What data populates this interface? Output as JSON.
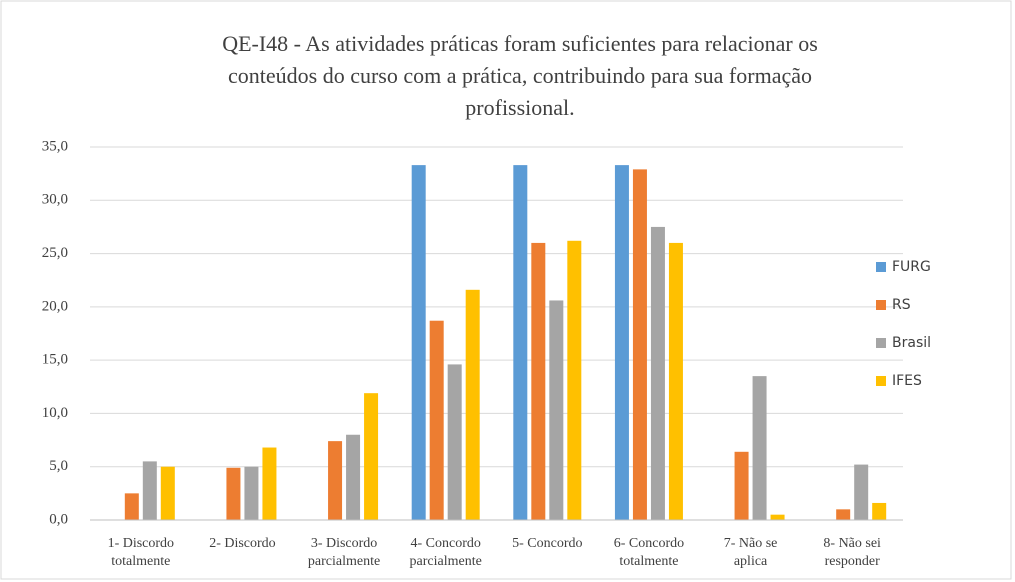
{
  "chart_data": {
    "type": "bar",
    "title": "QE-I48 - As atividades práticas foram suficientes para relacionar os\nconteúdos do curso com a prática, contribuindo para sua formação\nprofissional.",
    "categories": [
      "1- Discordo\ntotalmente",
      "2- Discordo",
      "3- Discordo\nparcialmente",
      "4- Concordo\nparcialmente",
      "5- Concordo",
      "6- Concordo\ntotalmente",
      "7- Não se\naplica",
      "8- Não sei\nresponder"
    ],
    "series": [
      {
        "name": "FURG",
        "color": "#5b9bd5",
        "values": [
          0,
          0,
          0,
          33.3,
          33.3,
          33.3,
          0,
          0
        ]
      },
      {
        "name": "RS",
        "color": "#ed7d31",
        "values": [
          2.5,
          4.9,
          7.4,
          18.7,
          26.0,
          32.9,
          6.4,
          1.0
        ]
      },
      {
        "name": "Brasil",
        "color": "#a5a5a5",
        "values": [
          5.5,
          5.0,
          8.0,
          14.6,
          20.6,
          27.5,
          13.5,
          5.2
        ]
      },
      {
        "name": "IFES",
        "color": "#ffc000",
        "values": [
          5.0,
          6.8,
          11.9,
          21.6,
          26.2,
          26.0,
          0.5,
          1.6
        ]
      }
    ],
    "ylim": [
      0,
      35
    ],
    "yticks": [
      {
        "value": 0,
        "label": "0,0"
      },
      {
        "value": 5,
        "label": "5,0"
      },
      {
        "value": 10,
        "label": "10,0"
      },
      {
        "value": 15,
        "label": "15,0"
      },
      {
        "value": 20,
        "label": "20,0"
      },
      {
        "value": 25,
        "label": "25,0"
      },
      {
        "value": 30,
        "label": "30,0"
      },
      {
        "value": 35,
        "label": "35,0"
      }
    ],
    "grid": true,
    "legend": "right"
  }
}
